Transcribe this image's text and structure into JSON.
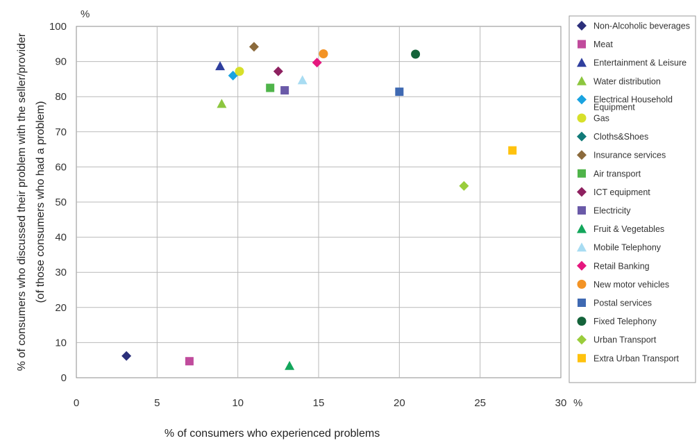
{
  "chart_data": {
    "type": "scatter",
    "title": "",
    "xlabel": "% of consumers who experienced problems",
    "ylabel_line1": "% of consumers who discussed their problem with the seller/provider",
    "ylabel_line2": "(of those consumers who had a problem)",
    "x_unit": "%",
    "y_unit": "%",
    "xlim": [
      0,
      30
    ],
    "ylim": [
      0,
      100
    ],
    "x_ticks": [
      0,
      5,
      10,
      15,
      20,
      25,
      30
    ],
    "y_ticks": [
      0,
      10,
      20,
      30,
      40,
      50,
      60,
      70,
      80,
      90,
      100
    ],
    "grid": "horizontal and vertical major gridlines",
    "legend_position": "right",
    "series": [
      {
        "name": "Non-Alcoholic beverages",
        "color": "#2b2f7a",
        "marker": "diamond",
        "x": 3.1,
        "y": 6.2
      },
      {
        "name": "Meat",
        "color": "#c04b9c",
        "marker": "square",
        "x": 7.0,
        "y": 4.7
      },
      {
        "name": "Entertainment & Leisure",
        "color": "#2f3f9e",
        "marker": "triangle",
        "x": 8.9,
        "y": 88.7
      },
      {
        "name": "Water distribution",
        "color": "#8cc63f",
        "marker": "triangle",
        "x": 9.0,
        "y": 78.0
      },
      {
        "name": "Electrical Household Equipment",
        "color": "#1aa3e0",
        "marker": "diamond",
        "x": 9.7,
        "y": 86.0
      },
      {
        "name": "Gas",
        "color": "#d7e02a",
        "marker": "circle",
        "x": 10.1,
        "y": 87.2
      },
      {
        "name": "Cloths&Shoes",
        "color": "#117a78",
        "marker": "diamond",
        "x": null,
        "y": null
      },
      {
        "name": "Insurance services",
        "color": "#8b6a3c",
        "marker": "diamond",
        "x": 11.0,
        "y": 94.2
      },
      {
        "name": "Air transport",
        "color": "#4fb44a",
        "marker": "square",
        "x": 12.0,
        "y": 82.5
      },
      {
        "name": "ICT equipment",
        "color": "#8e2160",
        "marker": "diamond",
        "x": 12.5,
        "y": 87.2
      },
      {
        "name": "Electricity",
        "color": "#6a5aa8",
        "marker": "square",
        "x": 12.9,
        "y": 81.8
      },
      {
        "name": "Fruit & Vegetables",
        "color": "#13a65b",
        "marker": "triangle",
        "x": 13.2,
        "y": 3.4
      },
      {
        "name": "Mobile Telephony",
        "color": "#a8dcf2",
        "marker": "triangle",
        "x": 14.0,
        "y": 84.7
      },
      {
        "name": "Retail Banking",
        "color": "#e5177e",
        "marker": "diamond",
        "x": 14.9,
        "y": 89.7
      },
      {
        "name": "New motor vehicles",
        "color": "#f39325",
        "marker": "circle",
        "x": 15.3,
        "y": 92.2
      },
      {
        "name": "Postal services",
        "color": "#3f69b2",
        "marker": "square",
        "x": 20.0,
        "y": 81.4
      },
      {
        "name": "Fixed Telephony",
        "color": "#14633a",
        "marker": "circle",
        "x": 21.0,
        "y": 92.1
      },
      {
        "name": "Urban Transport",
        "color": "#9acd3c",
        "marker": "diamond",
        "x": 24.0,
        "y": 54.6
      },
      {
        "name": "Extra Urban Transport",
        "color": "#ffc20e",
        "marker": "square",
        "x": 27.0,
        "y": 64.7
      }
    ]
  }
}
